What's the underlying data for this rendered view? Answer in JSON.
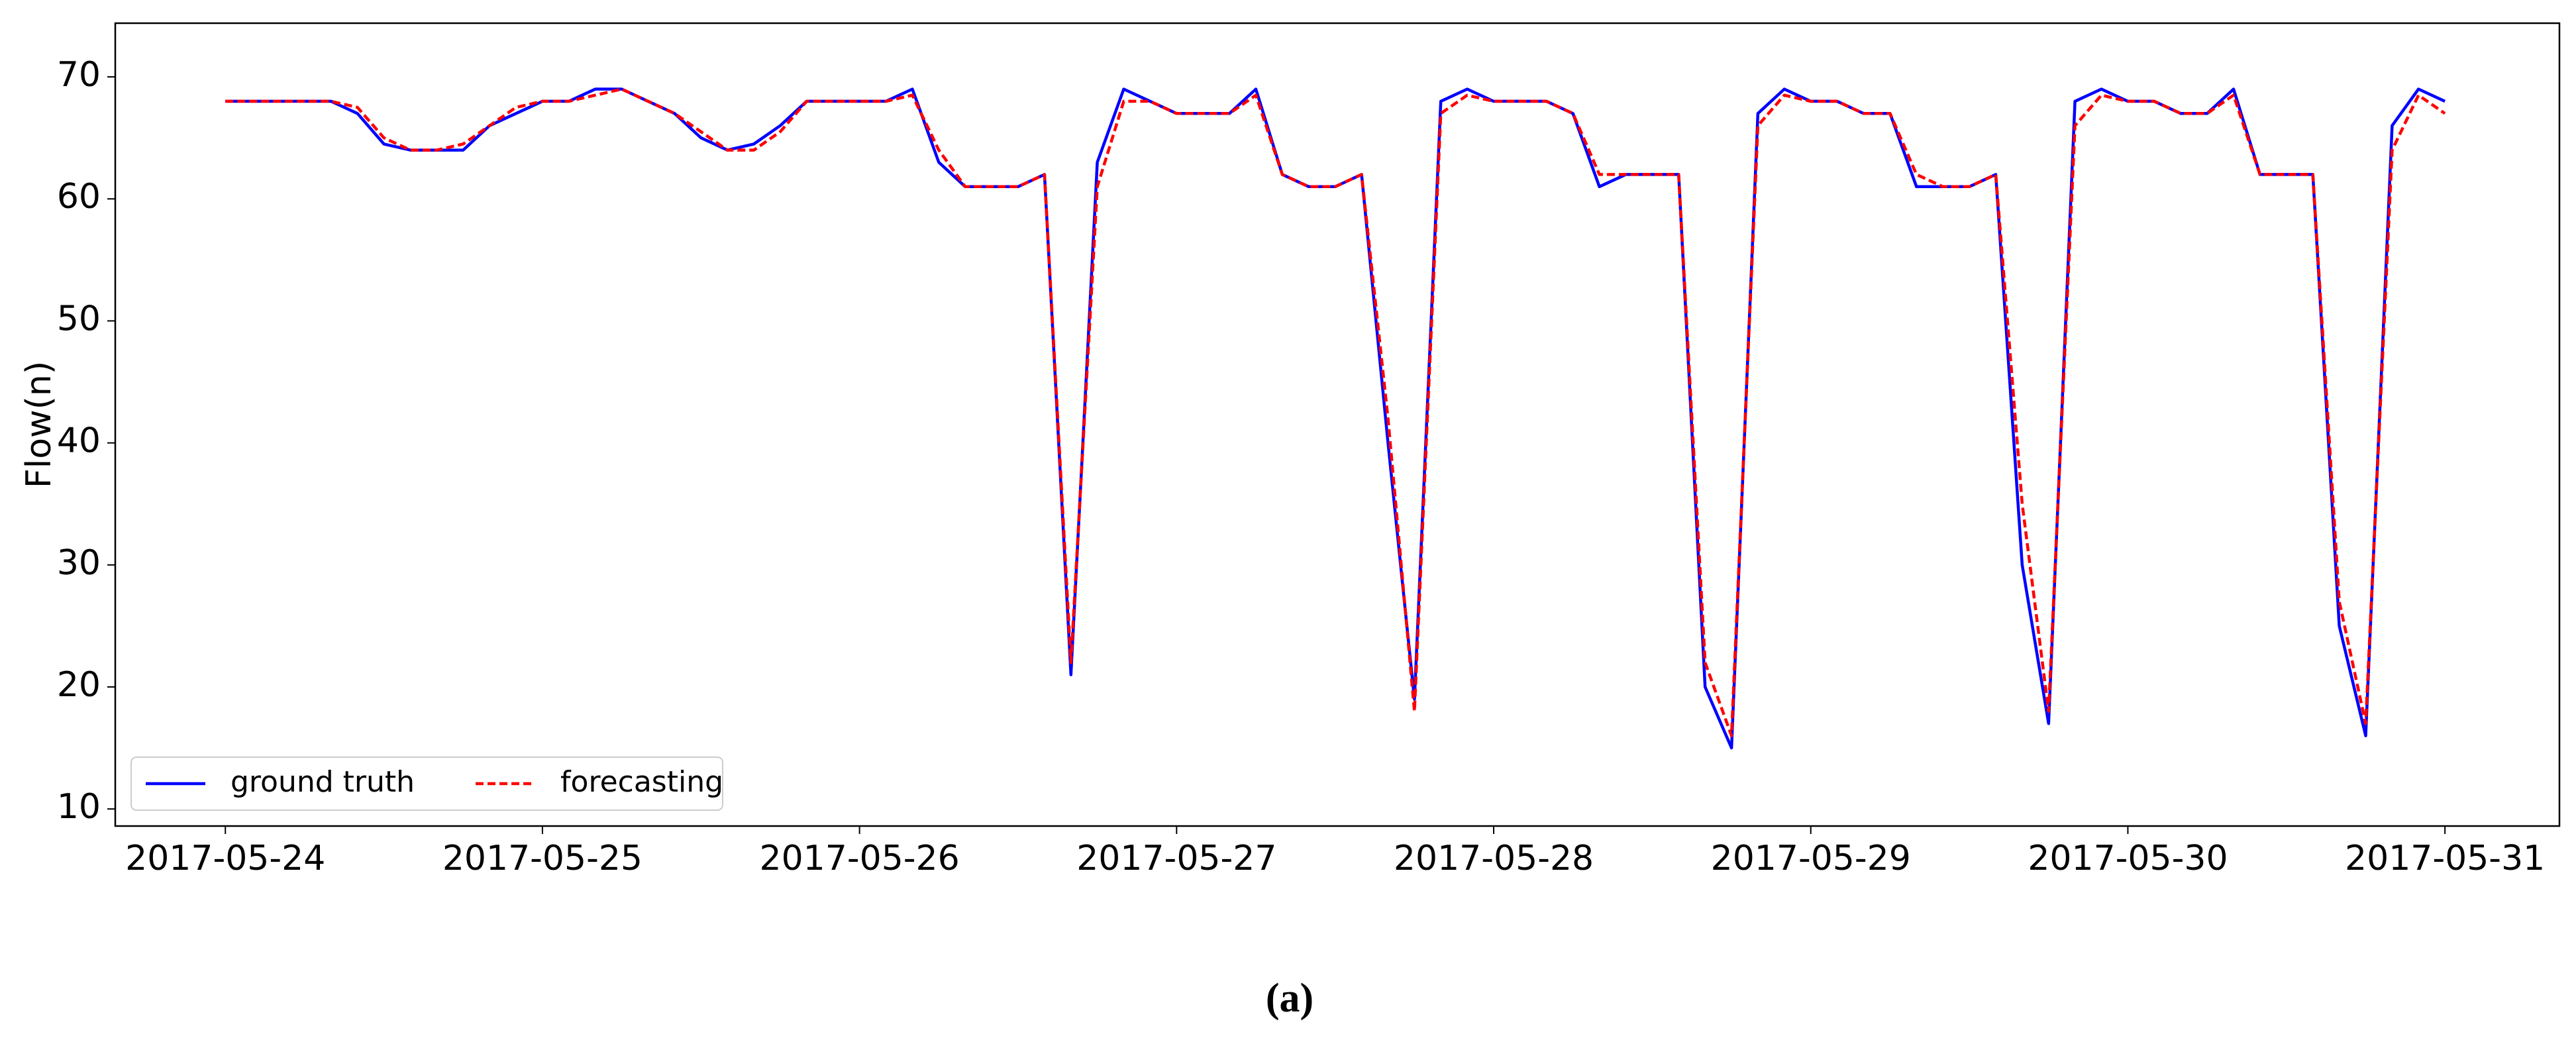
{
  "chart_data": {
    "type": "line",
    "ylabel": "Flow(n)",
    "caption": "(a)",
    "x": [
      "2017-05-24T00:00",
      "2017-05-24T02:00",
      "2017-05-24T04:00",
      "2017-05-24T06:00",
      "2017-05-24T08:00",
      "2017-05-24T10:00",
      "2017-05-24T12:00",
      "2017-05-24T14:00",
      "2017-05-24T16:00",
      "2017-05-24T18:00",
      "2017-05-24T20:00",
      "2017-05-24T22:00",
      "2017-05-25T00:00",
      "2017-05-25T02:00",
      "2017-05-25T04:00",
      "2017-05-25T06:00",
      "2017-05-25T08:00",
      "2017-05-25T10:00",
      "2017-05-25T12:00",
      "2017-05-25T14:00",
      "2017-05-25T16:00",
      "2017-05-25T18:00",
      "2017-05-25T20:00",
      "2017-05-25T22:00",
      "2017-05-26T00:00",
      "2017-05-26T02:00",
      "2017-05-26T04:00",
      "2017-05-26T06:00",
      "2017-05-26T08:00",
      "2017-05-26T10:00",
      "2017-05-26T12:00",
      "2017-05-26T14:00",
      "2017-05-26T16:00",
      "2017-05-26T18:00",
      "2017-05-26T20:00",
      "2017-05-26T22:00",
      "2017-05-27T00:00",
      "2017-05-27T02:00",
      "2017-05-27T04:00",
      "2017-05-27T06:00",
      "2017-05-27T08:00",
      "2017-05-27T10:00",
      "2017-05-27T12:00",
      "2017-05-27T14:00",
      "2017-05-27T16:00",
      "2017-05-27T18:00",
      "2017-05-27T20:00",
      "2017-05-27T22:00",
      "2017-05-28T00:00",
      "2017-05-28T02:00",
      "2017-05-28T04:00",
      "2017-05-28T06:00",
      "2017-05-28T08:00",
      "2017-05-28T10:00",
      "2017-05-28T12:00",
      "2017-05-28T14:00",
      "2017-05-28T16:00",
      "2017-05-28T18:00",
      "2017-05-28T20:00",
      "2017-05-28T22:00",
      "2017-05-29T00:00",
      "2017-05-29T02:00",
      "2017-05-29T04:00",
      "2017-05-29T06:00",
      "2017-05-29T08:00",
      "2017-05-29T10:00",
      "2017-05-29T12:00",
      "2017-05-29T14:00",
      "2017-05-29T16:00",
      "2017-05-29T18:00",
      "2017-05-29T20:00",
      "2017-05-29T22:00",
      "2017-05-30T00:00",
      "2017-05-30T02:00",
      "2017-05-30T04:00",
      "2017-05-30T06:00",
      "2017-05-30T08:00",
      "2017-05-30T10:00",
      "2017-05-30T12:00",
      "2017-05-30T14:00",
      "2017-05-30T16:00",
      "2017-05-30T18:00",
      "2017-05-30T20:00",
      "2017-05-30T22:00",
      "2017-05-31T00:00"
    ],
    "series": [
      {
        "name": "ground truth",
        "color": "#0000ff",
        "dash": false,
        "values": [
          68,
          68,
          68,
          68,
          68,
          67,
          64.5,
          64,
          64,
          64,
          66,
          67,
          68,
          68,
          69,
          69,
          68,
          67,
          65,
          64,
          64.5,
          66,
          68,
          68,
          68,
          68,
          69,
          63,
          61,
          61,
          61,
          62,
          21,
          63,
          69,
          68,
          67,
          67,
          67,
          69,
          62,
          61,
          61,
          62,
          40,
          19,
          68,
          69,
          68,
          68,
          68,
          67,
          61,
          62,
          62,
          62,
          20,
          15,
          67,
          69,
          68,
          68,
          67,
          67,
          61,
          61,
          61,
          62,
          30,
          17,
          68,
          69,
          68,
          68,
          67,
          67,
          69,
          62,
          62,
          62,
          25,
          16,
          66,
          69,
          68
        ]
      },
      {
        "name": "forecasting",
        "color": "#ff0000",
        "dash": true,
        "values": [
          68,
          68,
          68,
          68,
          68,
          67.5,
          65,
          64,
          64,
          64.5,
          66,
          67.5,
          68,
          68,
          68.5,
          69,
          68,
          67,
          65.5,
          64,
          64,
          65.5,
          68,
          68,
          68,
          68,
          68.5,
          64,
          61,
          61,
          61,
          62,
          22,
          61,
          68,
          68,
          67,
          67,
          67,
          68.5,
          62,
          61,
          61,
          62,
          42,
          18,
          67,
          68.5,
          68,
          68,
          68,
          67,
          62,
          62,
          62,
          62,
          22,
          16,
          66,
          68.5,
          68,
          68,
          67,
          67,
          62,
          61,
          61,
          62,
          35,
          18,
          66,
          68.5,
          68,
          68,
          67,
          67,
          68.5,
          62,
          62,
          62,
          27,
          17,
          64,
          68.5,
          67
        ]
      }
    ],
    "xlim": [
      "2017-05-23T15:40",
      "2017-05-31T08:40"
    ],
    "xticks": [
      "2017-05-24",
      "2017-05-25",
      "2017-05-26",
      "2017-05-27",
      "2017-05-28",
      "2017-05-29",
      "2017-05-30",
      "2017-05-31"
    ],
    "ylim": [
      8.6,
      74.4
    ],
    "yticks": [
      10,
      20,
      30,
      40,
      50,
      60,
      70
    ],
    "grid": false,
    "legend": "lower left"
  }
}
